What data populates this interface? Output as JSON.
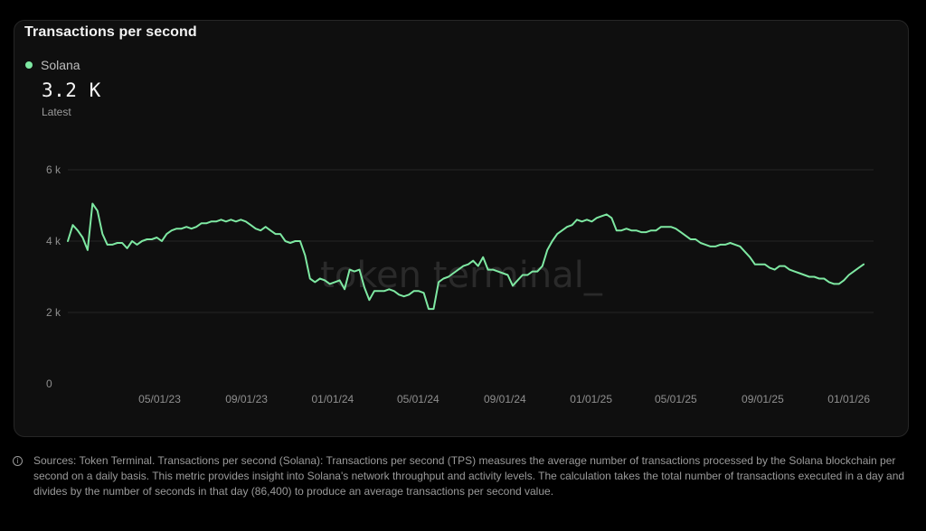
{
  "card": {
    "title": "Transactions per second",
    "legend_label": "Solana",
    "latest_value": "3.2 K",
    "latest_label": "Latest",
    "watermark": "token terminal_"
  },
  "colors": {
    "line": "#7ee8a2",
    "grid": "#262626",
    "axis_text": "#8f8f8f",
    "card_bg": "#0f0f0f",
    "page_bg": "#000000"
  },
  "chart_data": {
    "type": "line",
    "title": "Transactions per second",
    "xlabel": "",
    "ylabel": "",
    "ylim": [
      0,
      6000
    ],
    "yticks": [
      0,
      2000,
      4000,
      6000
    ],
    "ytick_labels": [
      "0",
      "2 k",
      "4 k",
      "6 k"
    ],
    "xlim": [
      "2022-12-22",
      "2026-02-05"
    ],
    "xticks": [
      "2023-05-01",
      "2023-09-01",
      "2024-01-01",
      "2024-05-01",
      "2024-09-01",
      "2025-01-01",
      "2025-05-01",
      "2025-09-01",
      "2026-01-01"
    ],
    "xtick_labels": [
      "05/01/23",
      "09/01/23",
      "01/01/24",
      "05/01/24",
      "09/01/24",
      "01/01/25",
      "05/01/25",
      "09/01/25",
      "01/01/26"
    ],
    "grid": "horizontal",
    "legend": "top-left",
    "series": [
      {
        "name": "Solana",
        "color": "#7ee8a2",
        "points": [
          [
            "2022-12-22",
            4000
          ],
          [
            "2022-12-29",
            4450
          ],
          [
            "2023-01-05",
            4300
          ],
          [
            "2023-01-12",
            4100
          ],
          [
            "2023-01-19",
            3750
          ],
          [
            "2023-01-26",
            5050
          ],
          [
            "2023-02-02",
            4850
          ],
          [
            "2023-02-09",
            4200
          ],
          [
            "2023-02-16",
            3900
          ],
          [
            "2023-02-23",
            3900
          ],
          [
            "2023-03-02",
            3950
          ],
          [
            "2023-03-09",
            3950
          ],
          [
            "2023-03-16",
            3800
          ],
          [
            "2023-03-23",
            4000
          ],
          [
            "2023-03-30",
            3900
          ],
          [
            "2023-04-06",
            4000
          ],
          [
            "2023-04-13",
            4050
          ],
          [
            "2023-04-20",
            4050
          ],
          [
            "2023-04-27",
            4100
          ],
          [
            "2023-05-04",
            4000
          ],
          [
            "2023-05-11",
            4200
          ],
          [
            "2023-05-18",
            4300
          ],
          [
            "2023-05-25",
            4350
          ],
          [
            "2023-06-01",
            4350
          ],
          [
            "2023-06-08",
            4400
          ],
          [
            "2023-06-15",
            4350
          ],
          [
            "2023-06-22",
            4400
          ],
          [
            "2023-06-29",
            4500
          ],
          [
            "2023-07-06",
            4500
          ],
          [
            "2023-07-13",
            4550
          ],
          [
            "2023-07-20",
            4550
          ],
          [
            "2023-07-27",
            4600
          ],
          [
            "2023-08-03",
            4550
          ],
          [
            "2023-08-10",
            4600
          ],
          [
            "2023-08-17",
            4550
          ],
          [
            "2023-08-24",
            4600
          ],
          [
            "2023-08-31",
            4550
          ],
          [
            "2023-09-07",
            4450
          ],
          [
            "2023-09-14",
            4350
          ],
          [
            "2023-09-21",
            4300
          ],
          [
            "2023-09-28",
            4400
          ],
          [
            "2023-10-05",
            4300
          ],
          [
            "2023-10-12",
            4200
          ],
          [
            "2023-10-19",
            4200
          ],
          [
            "2023-10-26",
            4000
          ],
          [
            "2023-11-02",
            3950
          ],
          [
            "2023-11-09",
            4000
          ],
          [
            "2023-11-16",
            4000
          ],
          [
            "2023-11-23",
            3600
          ],
          [
            "2023-11-30",
            2950
          ],
          [
            "2023-12-07",
            2850
          ],
          [
            "2023-12-14",
            2950
          ],
          [
            "2023-12-21",
            2900
          ],
          [
            "2023-12-28",
            2800
          ],
          [
            "2024-01-04",
            2850
          ],
          [
            "2024-01-11",
            2900
          ],
          [
            "2024-01-18",
            2650
          ],
          [
            "2024-01-25",
            3200
          ],
          [
            "2024-02-01",
            3150
          ],
          [
            "2024-02-08",
            3200
          ],
          [
            "2024-02-15",
            2700
          ],
          [
            "2024-02-22",
            2350
          ],
          [
            "2024-02-29",
            2600
          ],
          [
            "2024-03-07",
            2600
          ],
          [
            "2024-03-14",
            2600
          ],
          [
            "2024-03-21",
            2650
          ],
          [
            "2024-03-28",
            2600
          ],
          [
            "2024-04-04",
            2500
          ],
          [
            "2024-04-11",
            2450
          ],
          [
            "2024-04-18",
            2500
          ],
          [
            "2024-04-25",
            2600
          ],
          [
            "2024-05-02",
            2600
          ],
          [
            "2024-05-09",
            2550
          ],
          [
            "2024-05-16",
            2100
          ],
          [
            "2024-05-23",
            2100
          ],
          [
            "2024-05-30",
            2850
          ],
          [
            "2024-06-06",
            2950
          ],
          [
            "2024-06-13",
            3000
          ],
          [
            "2024-06-20",
            3100
          ],
          [
            "2024-06-27",
            3200
          ],
          [
            "2024-07-04",
            3300
          ],
          [
            "2024-07-11",
            3350
          ],
          [
            "2024-07-18",
            3450
          ],
          [
            "2024-07-25",
            3300
          ],
          [
            "2024-08-01",
            3550
          ],
          [
            "2024-08-08",
            3200
          ],
          [
            "2024-08-15",
            3200
          ],
          [
            "2024-08-22",
            3150
          ],
          [
            "2024-08-29",
            3100
          ],
          [
            "2024-09-05",
            3050
          ],
          [
            "2024-09-12",
            2750
          ],
          [
            "2024-09-19",
            2900
          ],
          [
            "2024-09-26",
            3050
          ],
          [
            "2024-10-03",
            3050
          ],
          [
            "2024-10-10",
            3150
          ],
          [
            "2024-10-17",
            3150
          ],
          [
            "2024-10-24",
            3300
          ],
          [
            "2024-10-31",
            3750
          ],
          [
            "2024-11-07",
            4000
          ],
          [
            "2024-11-14",
            4200
          ],
          [
            "2024-11-21",
            4300
          ],
          [
            "2024-11-28",
            4400
          ],
          [
            "2024-12-05",
            4450
          ],
          [
            "2024-12-12",
            4600
          ],
          [
            "2024-12-19",
            4550
          ],
          [
            "2024-12-26",
            4600
          ],
          [
            "2025-01-02",
            4550
          ],
          [
            "2025-01-09",
            4650
          ],
          [
            "2025-01-16",
            4700
          ],
          [
            "2025-01-23",
            4750
          ],
          [
            "2025-01-30",
            4650
          ],
          [
            "2025-02-06",
            4300
          ],
          [
            "2025-02-13",
            4300
          ],
          [
            "2025-02-20",
            4350
          ],
          [
            "2025-02-27",
            4300
          ],
          [
            "2025-03-06",
            4300
          ],
          [
            "2025-03-13",
            4250
          ],
          [
            "2025-03-20",
            4250
          ],
          [
            "2025-03-27",
            4300
          ],
          [
            "2025-04-03",
            4300
          ],
          [
            "2025-04-10",
            4400
          ],
          [
            "2025-04-17",
            4400
          ],
          [
            "2025-04-24",
            4400
          ],
          [
            "2025-05-01",
            4350
          ],
          [
            "2025-05-08",
            4250
          ],
          [
            "2025-05-15",
            4150
          ],
          [
            "2025-05-22",
            4050
          ],
          [
            "2025-05-29",
            4050
          ],
          [
            "2025-06-05",
            3950
          ],
          [
            "2025-06-12",
            3900
          ],
          [
            "2025-06-19",
            3850
          ],
          [
            "2025-06-26",
            3850
          ],
          [
            "2025-07-03",
            3900
          ],
          [
            "2025-07-10",
            3900
          ],
          [
            "2025-07-17",
            3950
          ],
          [
            "2025-07-24",
            3900
          ],
          [
            "2025-07-31",
            3850
          ],
          [
            "2025-08-07",
            3700
          ],
          [
            "2025-08-14",
            3550
          ],
          [
            "2025-08-21",
            3350
          ],
          [
            "2025-08-28",
            3350
          ],
          [
            "2025-09-04",
            3350
          ],
          [
            "2025-09-11",
            3250
          ],
          [
            "2025-09-18",
            3200
          ],
          [
            "2025-09-25",
            3300
          ],
          [
            "2025-10-02",
            3300
          ],
          [
            "2025-10-09",
            3200
          ],
          [
            "2025-10-16",
            3150
          ],
          [
            "2025-10-23",
            3100
          ],
          [
            "2025-10-30",
            3050
          ],
          [
            "2025-11-06",
            3000
          ],
          [
            "2025-11-13",
            3000
          ],
          [
            "2025-11-20",
            2950
          ],
          [
            "2025-11-27",
            2950
          ],
          [
            "2025-12-04",
            2850
          ],
          [
            "2025-12-11",
            2800
          ],
          [
            "2025-12-18",
            2800
          ],
          [
            "2025-12-25",
            2900
          ],
          [
            "2026-01-01",
            3050
          ],
          [
            "2026-01-08",
            3150
          ],
          [
            "2026-01-15",
            3250
          ],
          [
            "2026-01-22",
            3350
          ]
        ]
      }
    ]
  },
  "footnote": {
    "icon": "info-icon",
    "text": "Sources: Token Terminal. Transactions per second (Solana): Transactions per second (TPS) measures the average number of transactions processed by the Solana blockchain per second on a daily basis. This metric provides insight into Solana's network throughput and activity levels. The calculation takes the total number of transactions executed in a day and divides by the number of seconds in that day (86,400) to produce an average transactions per second value."
  }
}
